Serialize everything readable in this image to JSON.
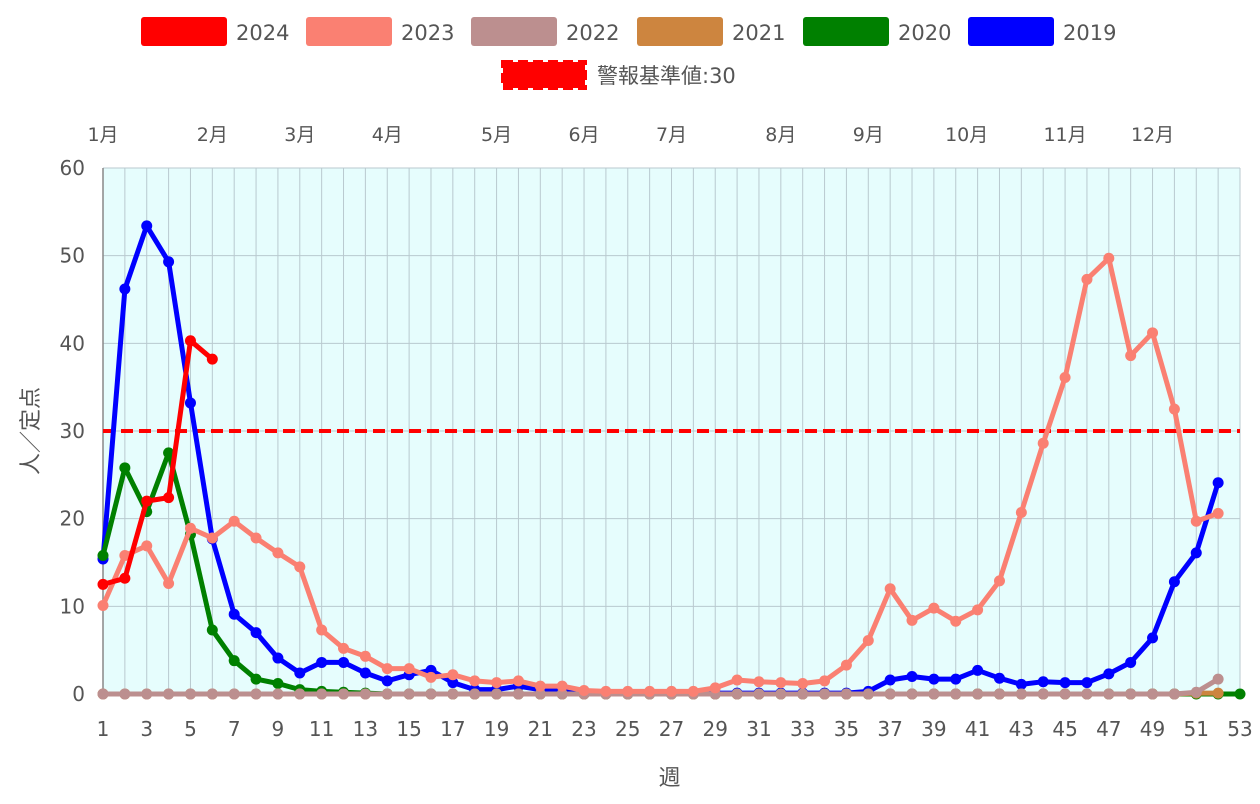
{
  "chart_data": {
    "type": "line",
    "xlabel": "週",
    "ylabel": "人／定点",
    "xlim": [
      1,
      53
    ],
    "ylim": [
      0,
      60
    ],
    "y_ticks": [
      0,
      10,
      20,
      30,
      40,
      50,
      60
    ],
    "x_ticks": [
      1,
      3,
      5,
      7,
      9,
      11,
      13,
      15,
      17,
      19,
      21,
      23,
      25,
      27,
      29,
      31,
      33,
      35,
      37,
      39,
      41,
      43,
      45,
      47,
      49,
      51,
      53
    ],
    "grid": true,
    "legend_position": "top",
    "months": [
      {
        "label": "1月",
        "week": 1
      },
      {
        "label": "2月",
        "week": 6
      },
      {
        "label": "3月",
        "week": 10
      },
      {
        "label": "4月",
        "week": 14
      },
      {
        "label": "5月",
        "week": 19
      },
      {
        "label": "6月",
        "week": 23
      },
      {
        "label": "7月",
        "week": 27
      },
      {
        "label": "8月",
        "week": 32
      },
      {
        "label": "9月",
        "week": 36
      },
      {
        "label": "10月",
        "week": 40.5
      },
      {
        "label": "11月",
        "week": 45
      },
      {
        "label": "12月",
        "week": 49
      }
    ],
    "threshold": {
      "name": "警報基準値:30",
      "value": 30,
      "color": "#ff0000"
    },
    "series": [
      {
        "name": "2024",
        "color": "#ff0000",
        "values": [
          12.5,
          13.2,
          22.0,
          22.4,
          40.3,
          38.2
        ]
      },
      {
        "name": "2023",
        "color": "#fa8072",
        "values": [
          10.1,
          15.8,
          16.9,
          12.6,
          18.9,
          17.8,
          19.7,
          17.8,
          16.1,
          14.5,
          7.3,
          5.2,
          4.3,
          2.9,
          2.9,
          1.9,
          2.2,
          1.5,
          1.3,
          1.5,
          0.9,
          0.9,
          0.4,
          0.3,
          0.3,
          0.3,
          0.3,
          0.3,
          0.7,
          1.6,
          1.4,
          1.3,
          1.2,
          1.5,
          3.3,
          6.1,
          12.0,
          8.4,
          9.8,
          8.3,
          9.6,
          12.9,
          20.7,
          28.6,
          36.1,
          47.3,
          49.7,
          38.6,
          41.2,
          32.5,
          19.7,
          20.6
        ]
      },
      {
        "name": "2022",
        "color": "#bc8f8f",
        "values": [
          0,
          0,
          0,
          0,
          0,
          0,
          0,
          0,
          0,
          0,
          0,
          0,
          0,
          0,
          0,
          0,
          0,
          0,
          0,
          0,
          0,
          0,
          0,
          0,
          0,
          0,
          0,
          0,
          0,
          0,
          0,
          0,
          0,
          0,
          0,
          0,
          0,
          0,
          0,
          0,
          0,
          0,
          0,
          0,
          0,
          0,
          0,
          0,
          0,
          0,
          0.2,
          1.7
        ]
      },
      {
        "name": "2021",
        "color": "#cd853f",
        "values": [
          0,
          0,
          0,
          0,
          0,
          0,
          0,
          0,
          0,
          0,
          0,
          0,
          0,
          0,
          0,
          0,
          0,
          0,
          0,
          0,
          0,
          0,
          0,
          0,
          0,
          0,
          0,
          0,
          0,
          0,
          0,
          0,
          0,
          0,
          0,
          0,
          0,
          0,
          0,
          0,
          0,
          0,
          0,
          0,
          0,
          0,
          0,
          0,
          0,
          0,
          0.1,
          0.1
        ]
      },
      {
        "name": "2020",
        "color": "#008000",
        "values": [
          15.8,
          25.8,
          20.8,
          27.5,
          18.2,
          7.3,
          3.8,
          1.7,
          1.2,
          0.5,
          0.3,
          0.2,
          0.1,
          0,
          0,
          0,
          0,
          0,
          0,
          0,
          0,
          0,
          0,
          0,
          0,
          0,
          0,
          0,
          0,
          0,
          0,
          0,
          0,
          0,
          0,
          0,
          0,
          0,
          0,
          0,
          0,
          0,
          0,
          0,
          0,
          0,
          0,
          0,
          0,
          0,
          0,
          0,
          0
        ]
      },
      {
        "name": "2019",
        "color": "#0000ff",
        "values": [
          15.4,
          46.2,
          53.4,
          49.3,
          33.2,
          17.7,
          9.1,
          7.0,
          4.1,
          2.4,
          3.6,
          3.6,
          2.4,
          1.5,
          2.2,
          2.7,
          1.3,
          0.5,
          0.5,
          0.9,
          0.5,
          0.3,
          0.2,
          0.2,
          0.1,
          0.1,
          0.1,
          0.1,
          0.1,
          0.1,
          0.1,
          0.1,
          0.1,
          0.1,
          0.1,
          0.3,
          1.6,
          2.0,
          1.7,
          1.7,
          2.7,
          1.8,
          1.1,
          1.4,
          1.3,
          1.3,
          2.3,
          3.6,
          6.4,
          12.8,
          16.1,
          24.1
        ]
      }
    ]
  }
}
